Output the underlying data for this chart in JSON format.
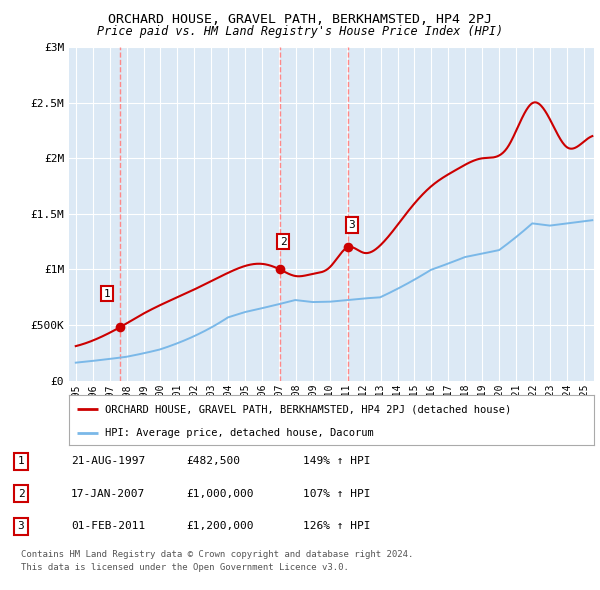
{
  "title": "ORCHARD HOUSE, GRAVEL PATH, BERKHAMSTED, HP4 2PJ",
  "subtitle": "Price paid vs. HM Land Registry's House Price Index (HPI)",
  "ylabel_ticks": [
    "£0",
    "£500K",
    "£1M",
    "£1.5M",
    "£2M",
    "£2.5M",
    "£3M"
  ],
  "ytick_values": [
    0,
    500000,
    1000000,
    1500000,
    2000000,
    2500000,
    3000000
  ],
  "ylim": [
    0,
    3000000
  ],
  "sale_year_floats": [
    1997.64,
    2007.05,
    2011.09
  ],
  "sale_prices": [
    482500,
    1000000,
    1200000
  ],
  "sale_labels": [
    "1",
    "2",
    "3"
  ],
  "hpi_color": "#7ab8e8",
  "price_color": "#cc0000",
  "dashed_color": "#ff8888",
  "legend_line1": "ORCHARD HOUSE, GRAVEL PATH, BERKHAMSTED, HP4 2PJ (detached house)",
  "legend_line2": "HPI: Average price, detached house, Dacorum",
  "table_rows": [
    [
      "1",
      "21-AUG-1997",
      "£482,500",
      "149% ↑ HPI"
    ],
    [
      "2",
      "17-JAN-2007",
      "£1,000,000",
      "107% ↑ HPI"
    ],
    [
      "3",
      "01-FEB-2011",
      "£1,200,000",
      "126% ↑ HPI"
    ]
  ],
  "footnote1": "Contains HM Land Registry data © Crown copyright and database right 2024.",
  "footnote2": "This data is licensed under the Open Government Licence v3.0.",
  "plot_bg_color": "#dce9f5",
  "grid_color": "#ffffff",
  "fig_width": 6.0,
  "fig_height": 5.9
}
